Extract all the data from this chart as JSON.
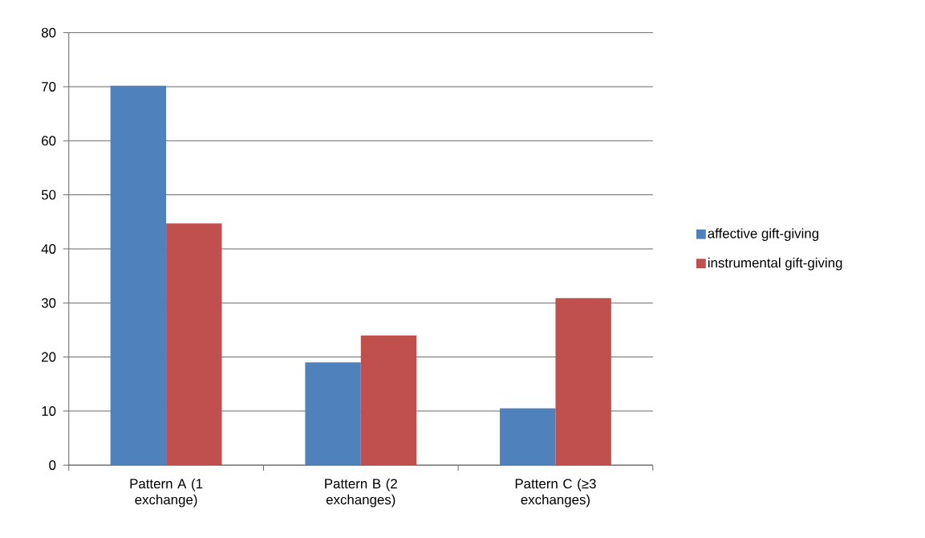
{
  "chart_data": {
    "type": "bar",
    "categories": [
      "Pattern A (1 exchange)",
      "Pattern B (2 exchanges)",
      "Pattern C (≥3 exchanges)"
    ],
    "series": [
      {
        "name": "affective gift-giving",
        "color": "#4f81bd",
        "values": [
          70.2,
          19.0,
          10.5
        ]
      },
      {
        "name": "instrumental gift-giving",
        "color": "#c0504d",
        "values": [
          44.7,
          24.0,
          30.9
        ]
      }
    ],
    "ylim": [
      0,
      80
    ],
    "yticks": [
      0,
      10,
      20,
      30,
      40,
      50,
      60,
      70,
      80
    ],
    "grid": "y",
    "legend": "right"
  }
}
